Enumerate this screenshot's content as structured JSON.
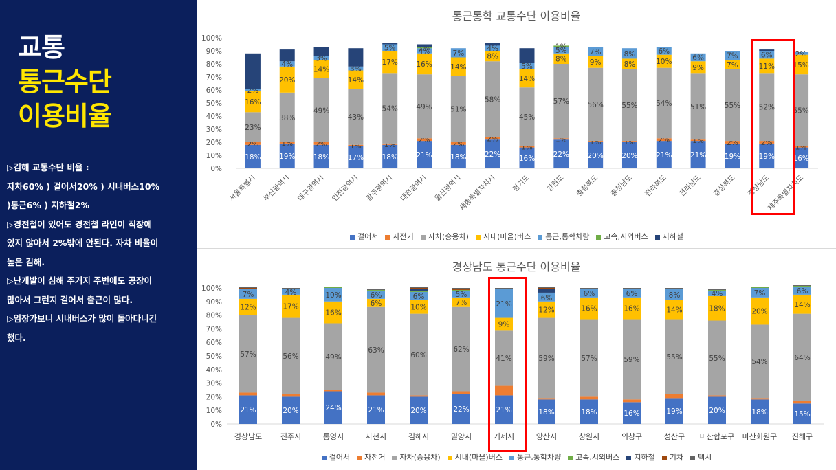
{
  "left_panel": {
    "title1": "교통",
    "title2": "통근수단",
    "title3": "이용비율",
    "notes": [
      "▷김해 교통수단 비율 :",
      "자차60% ) 걸어서20% ) 시내버스10%",
      ")통근6% ) 지하철2%",
      "▷경전철이 있어도 경전철 라인이 직장에",
      "있지 않아서 2%밖에 안된다. 자차 비율이",
      "높은 김해.",
      "▷난개발이 심해 주거지 주변에도 공장이",
      "많아서 그런지 걸어서 출근이 많다.",
      "▷임장가보니 시내버스가 많이 돌아다니긴",
      "했다."
    ]
  },
  "colors": {
    "walk": "#4472c4",
    "bike": "#ed7d31",
    "car": "#a5a5a5",
    "bus": "#ffc000",
    "shuttle": "#5b9bd5",
    "express": "#70ad47",
    "subway": "#264478",
    "train": "#9e480e",
    "taxi": "#636363",
    "highlight": "#ff0000"
  },
  "chart_data": [
    {
      "type": "bar",
      "stacked": true,
      "title": "통근통학 교통수단 이용비율",
      "ylim": [
        0,
        100
      ],
      "yticks": [
        "0%",
        "10%",
        "20%",
        "30%",
        "40%",
        "50%",
        "60%",
        "70%",
        "80%",
        "90%",
        "100%"
      ],
      "grid": false,
      "legend_position": "bottom",
      "categories": [
        "서울특별시",
        "부산광역시",
        "대구광역시",
        "인천광역시",
        "광주광역시",
        "대전광역시",
        "울산광역시",
        "세종특별자치시",
        "경기도",
        "강원도",
        "충청북도",
        "충청남도",
        "전라북도",
        "전라남도",
        "경상북도",
        "경상남도",
        "제주특별자치도"
      ],
      "highlight_index": 15,
      "series": [
        {
          "name": "걸어서",
          "color_key": "walk",
          "values": [
            18,
            19,
            18,
            17,
            18,
            21,
            18,
            22,
            16,
            22,
            20,
            20,
            21,
            21,
            19,
            19,
            16
          ],
          "labels": [
            "18%",
            "19%",
            "18%",
            "17%",
            "18%",
            "21%",
            "18%",
            "22%",
            "16%",
            "22%",
            "20%",
            "20%",
            "21%",
            "21%",
            "19%",
            "19%",
            "16%"
          ]
        },
        {
          "name": "자전거",
          "color_key": "bike",
          "values": [
            2,
            1,
            2,
            1,
            1,
            2,
            2,
            2,
            1,
            1,
            1,
            1,
            2,
            1,
            2,
            2,
            1
          ],
          "labels": [
            "2%",
            "1%",
            "2%",
            "1%",
            "1%",
            "2%",
            "2%",
            "2%",
            "1%",
            "1%",
            "1%",
            "1%",
            "2%",
            "1%",
            "2%",
            "2%",
            "1%"
          ]
        },
        {
          "name": "자차(승용차)",
          "color_key": "car",
          "values": [
            23,
            38,
            49,
            43,
            54,
            49,
            51,
            58,
            45,
            57,
            56,
            55,
            54,
            51,
            55,
            52,
            55
          ],
          "labels": [
            "23%",
            "38%",
            "49%",
            "43%",
            "54%",
            "49%",
            "51%",
            "58%",
            "45%",
            "57%",
            "56%",
            "55%",
            "54%",
            "51%",
            "55%",
            "52%",
            "55%"
          ]
        },
        {
          "name": "시내(마을)버스",
          "color_key": "bus",
          "values": [
            16,
            20,
            14,
            14,
            17,
            16,
            14,
            8,
            14,
            8,
            9,
            8,
            10,
            9,
            7,
            11,
            15
          ],
          "labels": [
            "16%",
            "20%",
            "14%",
            "14%",
            "17%",
            "16%",
            "14%",
            "8%",
            "14%",
            "8%",
            "9%",
            "8%",
            "10%",
            "9%",
            "7%",
            "11%",
            "15%"
          ]
        },
        {
          "name": "통근,통학차량",
          "color_key": "shuttle",
          "values": [
            2,
            4,
            3,
            3,
            5,
            4,
            7,
            4,
            5,
            5,
            7,
            8,
            6,
            6,
            7,
            6,
            2
          ],
          "labels": [
            "2%",
            "4%",
            "3%",
            "3%",
            "5%",
            "4%",
            "7%",
            "4%",
            "5%",
            "5%",
            "7%",
            "8%",
            "6%",
            "6%",
            "7%",
            "6%",
            "2%"
          ]
        },
        {
          "name": "고속,시외버스",
          "color_key": "express",
          "values": [
            0,
            0,
            0,
            0,
            0,
            1,
            0,
            0,
            0,
            1,
            0,
            0,
            0,
            0,
            0,
            0,
            0
          ],
          "labels": [
            "0%",
            "0%",
            "0%",
            "0%",
            "0%",
            "1%",
            "0%",
            "0%",
            "0%",
            "1%",
            "0%",
            "0%",
            "0%",
            "0%",
            "0%",
            "0%",
            "0%"
          ]
        },
        {
          "name": "지하철",
          "color_key": "subway",
          "values": [
            27,
            9,
            7,
            14,
            1,
            2,
            0,
            2,
            11,
            0,
            0,
            0,
            0,
            0,
            0,
            1,
            0
          ],
          "labels": [
            "",
            "",
            "",
            "",
            "",
            "",
            "",
            "",
            "",
            "",
            "",
            "",
            "",
            "",
            "",
            "",
            ""
          ]
        }
      ]
    },
    {
      "type": "bar",
      "stacked": true,
      "title": "경상남도 통근수단 이용비율",
      "ylim": [
        0,
        100
      ],
      "yticks": [
        "0%",
        "10%",
        "20%",
        "30%",
        "40%",
        "50%",
        "60%",
        "70%",
        "80%",
        "90%",
        "100%"
      ],
      "grid": false,
      "legend_position": "bottom",
      "categories": [
        "경상남도",
        "진주시",
        "통영시",
        "사천시",
        "김해시",
        "밀양시",
        "거제시",
        "양산시",
        "창원시",
        "의창구",
        "성산구",
        "마산합포구",
        "마산회원구",
        "진해구"
      ],
      "highlight_index": 6,
      "series": [
        {
          "name": "걸어서",
          "color_key": "walk",
          "values": [
            21,
            20,
            24,
            21,
            20,
            22,
            21,
            18,
            18,
            16,
            19,
            20,
            18,
            15
          ],
          "labels": [
            "21%",
            "20%",
            "24%",
            "21%",
            "20%",
            "22%",
            "21%",
            "18%",
            "18%",
            "16%",
            "19%",
            "20%",
            "18%",
            "15%"
          ]
        },
        {
          "name": "자전거",
          "color_key": "bike",
          "values": [
            2,
            2,
            1,
            2,
            1,
            2,
            7,
            1,
            2,
            2,
            3,
            1,
            1,
            2
          ],
          "labels": [
            "",
            "",
            "",
            "",
            "",
            "",
            "",
            "",
            "",
            "",
            "",
            "",
            "",
            ""
          ]
        },
        {
          "name": "자차(승용차)",
          "color_key": "car",
          "values": [
            57,
            56,
            49,
            63,
            60,
            62,
            41,
            59,
            57,
            59,
            55,
            55,
            54,
            64
          ],
          "labels": [
            "57%",
            "56%",
            "49%",
            "63%",
            "60%",
            "62%",
            "41%",
            "59%",
            "57%",
            "59%",
            "55%",
            "55%",
            "54%",
            "64%"
          ]
        },
        {
          "name": "시내(마을)버스",
          "color_key": "bus",
          "values": [
            12,
            17,
            16,
            6,
            10,
            7,
            9,
            12,
            16,
            16,
            14,
            18,
            20,
            14
          ],
          "labels": [
            "12%",
            "17%",
            "16%",
            "6%",
            "10%",
            "7%",
            "9%",
            "12%",
            "16%",
            "16%",
            "14%",
            "18%",
            "20%",
            "14%"
          ]
        },
        {
          "name": "통근,통학차량",
          "color_key": "shuttle",
          "values": [
            7,
            4,
            10,
            6,
            6,
            5,
            21,
            6,
            6,
            6,
            8,
            4,
            7,
            6
          ],
          "labels": [
            "7%",
            "4%",
            "10%",
            "6%",
            "6%",
            "5%",
            "21%",
            "6%",
            "6%",
            "6%",
            "8%",
            "4%",
            "7%",
            "6%"
          ]
        },
        {
          "name": "고속,시외버스",
          "color_key": "express",
          "values": [
            0.5,
            0.5,
            0.5,
            0.5,
            0.5,
            0.5,
            0.5,
            0.5,
            0.5,
            0.5,
            0.5,
            0.5,
            0.5,
            0.5
          ],
          "labels": [
            "",
            "",
            "",
            "",
            "",
            "",
            "",
            "",
            "",
            "",
            "",
            "",
            "",
            ""
          ]
        },
        {
          "name": "지하철",
          "color_key": "subway",
          "values": [
            0,
            0,
            0,
            0,
            2,
            0,
            0,
            3,
            0,
            0,
            0,
            0,
            0,
            0
          ],
          "labels": [
            "",
            "",
            "",
            "",
            "",
            "",
            "",
            "",
            "",
            "",
            "",
            "",
            "",
            ""
          ]
        },
        {
          "name": "기차",
          "color_key": "train",
          "values": [
            0.5,
            0,
            0,
            0,
            0.5,
            1,
            0,
            0.5,
            0,
            0,
            0,
            0,
            0,
            0
          ],
          "labels": [
            "",
            "",
            "",
            "",
            "",
            "",
            "",
            "",
            "",
            "",
            "",
            "",
            "",
            ""
          ]
        },
        {
          "name": "택시",
          "color_key": "taxi",
          "values": [
            0.5,
            0.5,
            0.5,
            0.5,
            0.5,
            0.5,
            0.5,
            0.5,
            0.5,
            0.5,
            0.5,
            0.5,
            0.5,
            0.5
          ],
          "labels": [
            "",
            "",
            "",
            "",
            "",
            "",
            "",
            "",
            "",
            "",
            "",
            "",
            "",
            ""
          ]
        }
      ]
    }
  ]
}
